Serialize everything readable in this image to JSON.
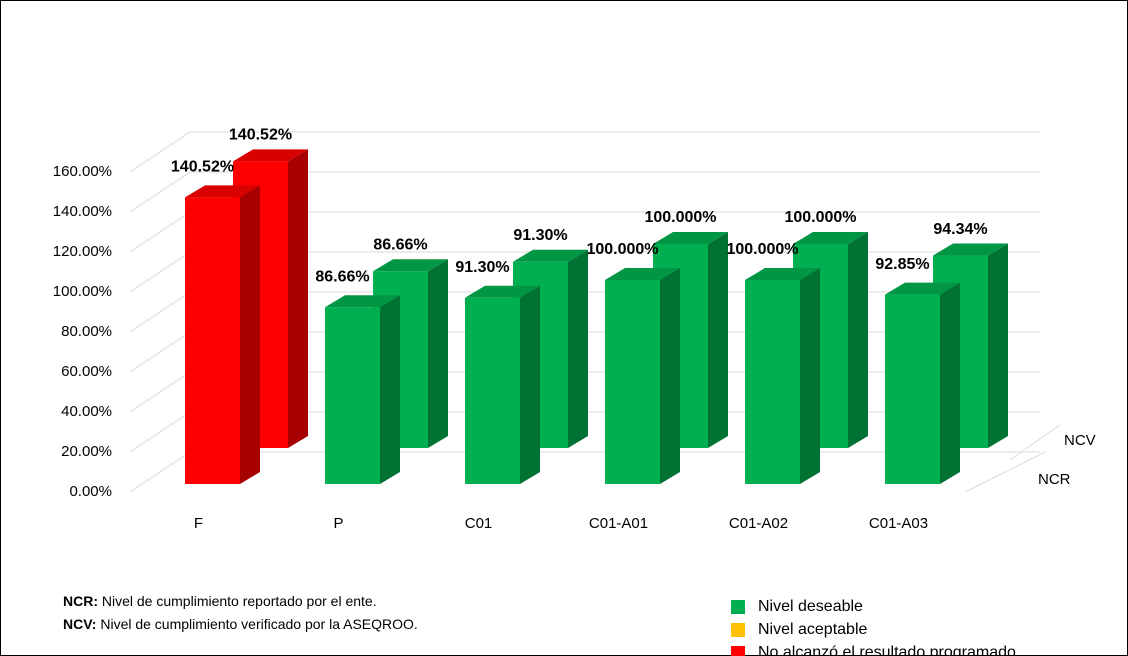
{
  "chart_data": {
    "type": "bar3d",
    "categories": [
      "F",
      "P",
      "C01",
      "C01-A01",
      "C01-A02",
      "C01-A03"
    ],
    "series": [
      {
        "name": "NCR",
        "colors": [
          "#ff0000",
          "#00b050",
          "#00b050",
          "#00b050",
          "#00b050",
          "#00b050"
        ],
        "values": [
          140.52,
          86.66,
          91.3,
          100.0,
          100.0,
          92.85
        ],
        "value_labels": [
          "140.52%",
          "86.66%",
          "91.30%",
          "100.000%",
          "100.000%",
          "92.85%"
        ]
      },
      {
        "name": "NCV",
        "colors": [
          "#ff0000",
          "#00b050",
          "#00b050",
          "#00b050",
          "#00b050",
          "#00b050"
        ],
        "values": [
          140.52,
          86.66,
          91.3,
          100.0,
          100.0,
          94.34
        ],
        "value_labels": [
          "140.52%",
          "86.66%",
          "91.30%",
          "100.000%",
          "100.000%",
          "94.34%"
        ]
      }
    ],
    "ylim": [
      0,
      160
    ],
    "yticks": [
      {
        "value": 0,
        "label": "0.00%"
      },
      {
        "value": 20,
        "label": "20.00%"
      },
      {
        "value": 40,
        "label": "40.00%"
      },
      {
        "value": 60,
        "label": "60.00%"
      },
      {
        "value": 80,
        "label": "80.00%"
      },
      {
        "value": 100,
        "label": "100.00%"
      },
      {
        "value": 120,
        "label": "120.00%"
      },
      {
        "value": 140,
        "label": "140.00%"
      },
      {
        "value": 160,
        "label": "160.00%"
      }
    ],
    "grid": true,
    "legend": [
      {
        "label": "Nivel deseable",
        "color": "#00b050"
      },
      {
        "label": "Nivel aceptable",
        "color": "#ffc000"
      },
      {
        "label": "No alcanzó el resultado programado",
        "color": "#ff0000"
      }
    ],
    "notes": [
      {
        "term": "NCR:",
        "text": " Nivel de cumplimiento reportado por el ente."
      },
      {
        "term": "NCV:",
        "text": " Nivel de cumplimiento verificado por la ASEQROO."
      }
    ]
  }
}
